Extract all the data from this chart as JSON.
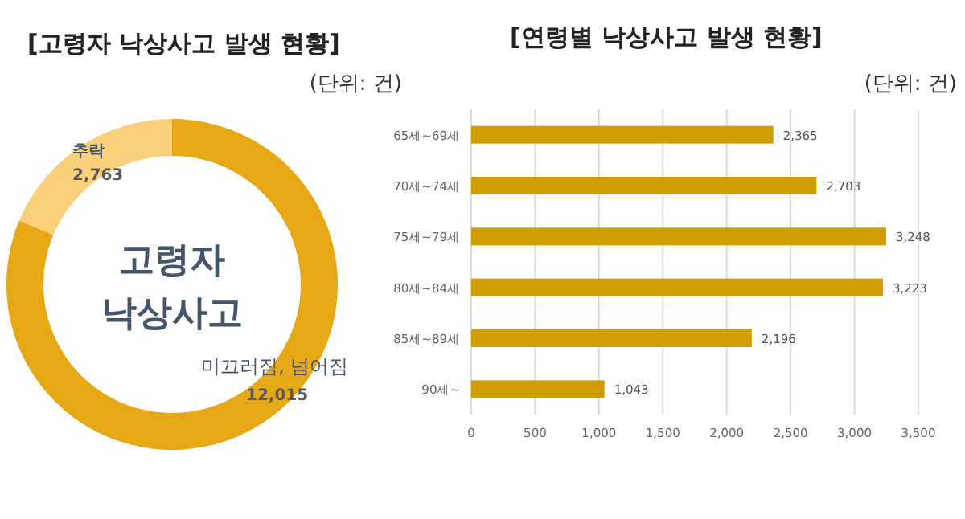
{
  "chart_data": [
    {
      "type": "donut",
      "title": "[고령자 낙상사고 발생 현황]",
      "subtitle": "(단위: 건)",
      "categories": [
        "미끄러짐, 넘어짐",
        "추락"
      ],
      "values": [
        12015,
        2763
      ],
      "value_labels": [
        "12,015",
        "2,763"
      ],
      "colors": [
        "#e6a814",
        "#fbd07a"
      ],
      "annotations": [
        "고령자 낙상사고"
      ]
    },
    {
      "type": "bar",
      "orientation": "horizontal",
      "title": "[연령별 낙상사고 발생 현황]",
      "subtitle": "(단위: 건)",
      "categories": [
        "65세~69세",
        "70세~74세",
        "75세~79세",
        "80세~84세",
        "85세~89세",
        "90세~"
      ],
      "values": [
        2365,
        2703,
        3248,
        3223,
        2196,
        1043
      ],
      "value_labels": [
        "2,365",
        "2,703",
        "3,248",
        "3,223",
        "2,196",
        "1,043"
      ],
      "color": "#d09e04",
      "xlim": [
        0,
        3500
      ],
      "xticks": [
        0,
        500,
        {
          "value": 1000,
          "label": "1,000"
        },
        {
          "value": 1500,
          "label": "1,500"
        },
        {
          "value": 2000,
          "label": "2,000"
        },
        {
          "value": 2500,
          "label": "2,500"
        },
        {
          "value": 3000,
          "label": "3,000"
        },
        {
          "value": 3500,
          "label": "3,500"
        }
      ],
      "grid": "x"
    }
  ]
}
